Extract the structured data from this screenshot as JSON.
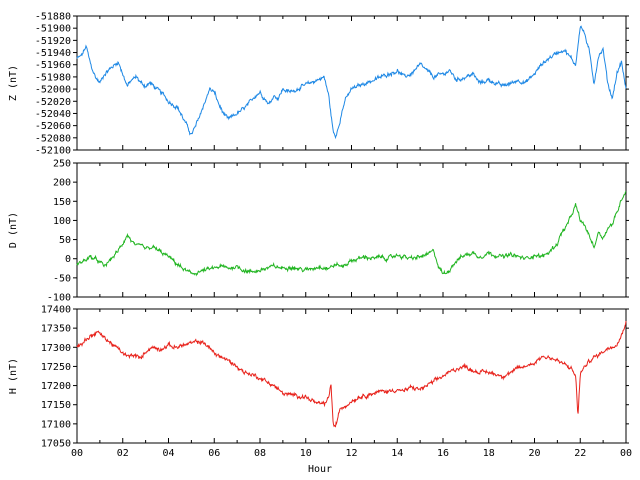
{
  "chart_data": [
    {
      "type": "line",
      "panel": "Z",
      "ylabel": "Z (nT)",
      "ylim": [
        -52100,
        -51880
      ],
      "yticks": [
        -51880,
        -51900,
        -51920,
        -51940,
        -51960,
        -51980,
        -52000,
        -52020,
        -52040,
        -52060,
        -52080,
        -52100
      ],
      "color": "#1e88e5",
      "series": [
        {
          "x": [
            0,
            0.2,
            0.4,
            0.6,
            0.8,
            1.0,
            1.2,
            1.5,
            1.8,
            2.0,
            2.2,
            2.4,
            2.6,
            2.8,
            3.0,
            3.2,
            3.5,
            3.8,
            4.0,
            4.2,
            4.4,
            4.6,
            4.8,
            5.0,
            5.2,
            5.4,
            5.6,
            5.8,
            6.0,
            6.2,
            6.4,
            6.6,
            6.8,
            7.0,
            7.2,
            7.5,
            7.8,
            8.0,
            8.2,
            8.4,
            8.6,
            8.8,
            9.0,
            9.3,
            9.6,
            9.9,
            10.2,
            10.5,
            10.8,
            11.0,
            11.1,
            11.2,
            11.3,
            11.5,
            11.7,
            12.0,
            12.3,
            12.6,
            13.0,
            13.3,
            13.6,
            14.0,
            14.3,
            14.6,
            15.0,
            15.3,
            15.6,
            16.0,
            16.3,
            16.6,
            17.0,
            17.3,
            17.6,
            18.0,
            18.3,
            18.6,
            19.0,
            19.3,
            19.6,
            20.0,
            20.3,
            20.6,
            21.0,
            21.3,
            21.6,
            21.8,
            22.0,
            22.2,
            22.4,
            22.6,
            22.8,
            23.0,
            23.2,
            23.4,
            23.6,
            23.8,
            24.0
          ],
          "y": [
            -51950,
            -51945,
            -51930,
            -51960,
            -51980,
            -51990,
            -51975,
            -51965,
            -51955,
            -51975,
            -51995,
            -51985,
            -51980,
            -51990,
            -51995,
            -51990,
            -52000,
            -52010,
            -52020,
            -52025,
            -52030,
            -52045,
            -52060,
            -52075,
            -52060,
            -52040,
            -52020,
            -52000,
            -52005,
            -52025,
            -52040,
            -52050,
            -52045,
            -52040,
            -52035,
            -52025,
            -52010,
            -52005,
            -52015,
            -52025,
            -52010,
            -52015,
            -52000,
            -52005,
            -52000,
            -51995,
            -51990,
            -51985,
            -51980,
            -52010,
            -52040,
            -52070,
            -52080,
            -52050,
            -52020,
            -52000,
            -51995,
            -51990,
            -51985,
            -51980,
            -51975,
            -51970,
            -51980,
            -51975,
            -51960,
            -51970,
            -51980,
            -51975,
            -51970,
            -51985,
            -51980,
            -51975,
            -51990,
            -51985,
            -51990,
            -51995,
            -51990,
            -51985,
            -51990,
            -51975,
            -51960,
            -51950,
            -51940,
            -51935,
            -51950,
            -51960,
            -51895,
            -51910,
            -51940,
            -51990,
            -51945,
            -51935,
            -51990,
            -52015,
            -51975,
            -51955,
            -52000
          ]
        }
      ]
    },
    {
      "type": "line",
      "panel": "D",
      "ylabel": "D (nT)",
      "ylim": [
        -100,
        250
      ],
      "yticks": [
        250,
        200,
        150,
        100,
        50,
        0,
        -50,
        -100
      ],
      "color": "#22b522",
      "series": [
        {
          "x": [
            0,
            0.3,
            0.6,
            0.9,
            1.2,
            1.5,
            1.8,
            2.0,
            2.2,
            2.4,
            2.6,
            2.8,
            3.0,
            3.3,
            3.6,
            4.0,
            4.3,
            4.6,
            5.0,
            5.3,
            5.6,
            6.0,
            6.3,
            6.6,
            7.0,
            7.3,
            7.6,
            8.0,
            8.3,
            8.6,
            9.0,
            9.3,
            9.6,
            10.0,
            10.3,
            10.6,
            11.0,
            11.3,
            11.6,
            12.0,
            12.3,
            12.6,
            13.0,
            13.3,
            13.6,
            14.0,
            14.3,
            14.6,
            15.0,
            15.3,
            15.6,
            15.8,
            16.0,
            16.2,
            16.5,
            16.8,
            17.0,
            17.3,
            17.6,
            18.0,
            18.3,
            18.6,
            19.0,
            19.3,
            19.6,
            20.0,
            20.3,
            20.6,
            21.0,
            21.2,
            21.4,
            21.6,
            21.8,
            22.0,
            22.2,
            22.4,
            22.6,
            22.8,
            23.0,
            23.2,
            23.4,
            23.6,
            23.8,
            24.0
          ],
          "y": [
            -15,
            -5,
            5,
            -5,
            -20,
            0,
            20,
            40,
            62,
            45,
            30,
            35,
            25,
            30,
            20,
            5,
            -10,
            -25,
            -40,
            -35,
            -30,
            -25,
            -20,
            -25,
            -20,
            -30,
            -35,
            -30,
            -25,
            -20,
            -25,
            -20,
            -25,
            -30,
            -25,
            -20,
            -25,
            -15,
            -20,
            -5,
            0,
            5,
            0,
            5,
            0,
            10,
            5,
            0,
            5,
            10,
            20,
            -20,
            -40,
            -35,
            -10,
            5,
            10,
            15,
            5,
            15,
            10,
            5,
            10,
            5,
            0,
            10,
            5,
            15,
            40,
            70,
            85,
            110,
            140,
            100,
            85,
            60,
            30,
            70,
            55,
            80,
            90,
            120,
            155,
            180
          ]
        }
      ]
    },
    {
      "type": "line",
      "panel": "H",
      "ylabel": "H (nT)",
      "xlabel": "Hour",
      "ylim": [
        17050,
        17400
      ],
      "yticks": [
        17400,
        17350,
        17300,
        17250,
        17200,
        17150,
        17100,
        17050
      ],
      "xlim": [
        0,
        24
      ],
      "xticks": [
        "00",
        "02",
        "04",
        "06",
        "08",
        "10",
        "12",
        "14",
        "16",
        "18",
        "20",
        "22",
        "00"
      ],
      "color": "#e8231c",
      "series": [
        {
          "x": [
            0,
            0.3,
            0.6,
            0.9,
            1.2,
            1.5,
            1.8,
            2.0,
            2.2,
            2.5,
            2.8,
            3.0,
            3.3,
            3.6,
            4.0,
            4.3,
            4.6,
            5.0,
            5.3,
            5.6,
            6.0,
            6.3,
            6.6,
            7.0,
            7.3,
            7.6,
            8.0,
            8.3,
            8.6,
            9.0,
            9.3,
            9.6,
            10.0,
            10.3,
            10.6,
            10.9,
            11.0,
            11.1,
            11.2,
            11.3,
            11.5,
            11.8,
            12.0,
            12.3,
            12.6,
            13.0,
            13.3,
            13.6,
            14.0,
            14.3,
            14.6,
            15.0,
            15.3,
            15.6,
            16.0,
            16.3,
            16.6,
            17.0,
            17.3,
            17.6,
            18.0,
            18.3,
            18.6,
            19.0,
            19.3,
            19.6,
            20.0,
            20.3,
            20.6,
            21.0,
            21.3,
            21.6,
            21.8,
            21.9,
            22.0,
            22.2,
            22.5,
            22.8,
            23.0,
            23.3,
            23.6,
            23.8,
            24.0
          ],
          "y": [
            17300,
            17315,
            17330,
            17340,
            17325,
            17310,
            17295,
            17285,
            17275,
            17280,
            17270,
            17290,
            17300,
            17295,
            17305,
            17300,
            17305,
            17310,
            17315,
            17310,
            17285,
            17275,
            17265,
            17250,
            17235,
            17230,
            17220,
            17210,
            17200,
            17180,
            17175,
            17175,
            17170,
            17160,
            17150,
            17155,
            17170,
            17205,
            17100,
            17090,
            17140,
            17150,
            17160,
            17170,
            17175,
            17180,
            17185,
            17185,
            17190,
            17185,
            17195,
            17190,
            17200,
            17210,
            17225,
            17235,
            17245,
            17250,
            17240,
            17235,
            17235,
            17230,
            17225,
            17235,
            17245,
            17250,
            17260,
            17275,
            17275,
            17265,
            17255,
            17245,
            17225,
            17120,
            17230,
            17250,
            17270,
            17280,
            17290,
            17300,
            17310,
            17330,
            17370
          ]
        }
      ]
    }
  ]
}
